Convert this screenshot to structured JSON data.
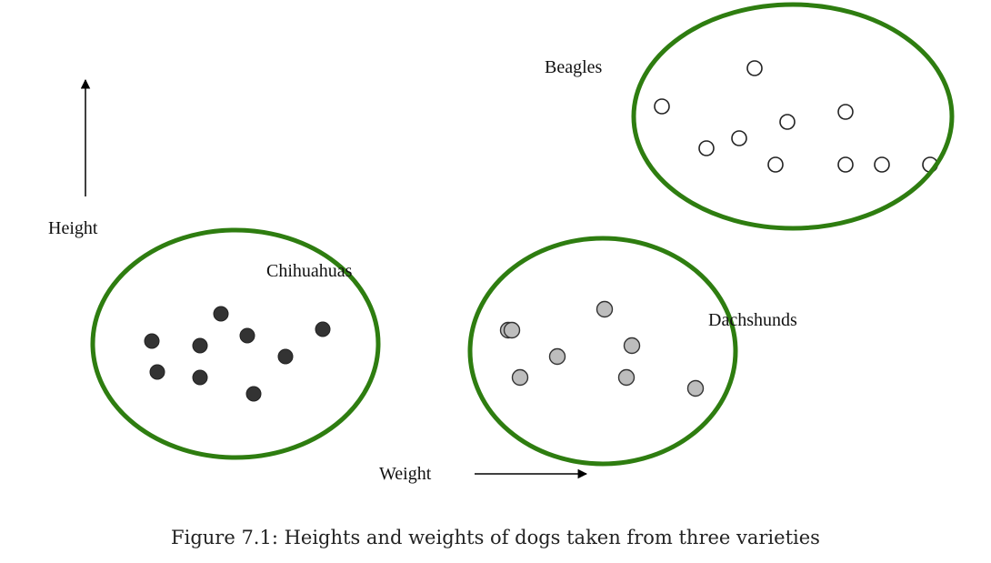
{
  "axes": {
    "y_label": "Height",
    "x_label": "Weight"
  },
  "clusters": {
    "beagles": {
      "label": "Beagles",
      "outline_color": "#2e7d10",
      "point_fill": "#ffffff",
      "point_stroke": "#222222"
    },
    "chihuahuas": {
      "label": "Chihuahuas",
      "outline_color": "#2e7d10",
      "point_fill": "#333333",
      "point_stroke": "#222222"
    },
    "dachshunds": {
      "label": "Dachshunds",
      "outline_color": "#2e7d10",
      "point_fill": "#bdbdbd",
      "point_stroke": "#333333"
    }
  },
  "caption": "Figure 7.1: Heights and weights of dogs taken from three varieties"
}
